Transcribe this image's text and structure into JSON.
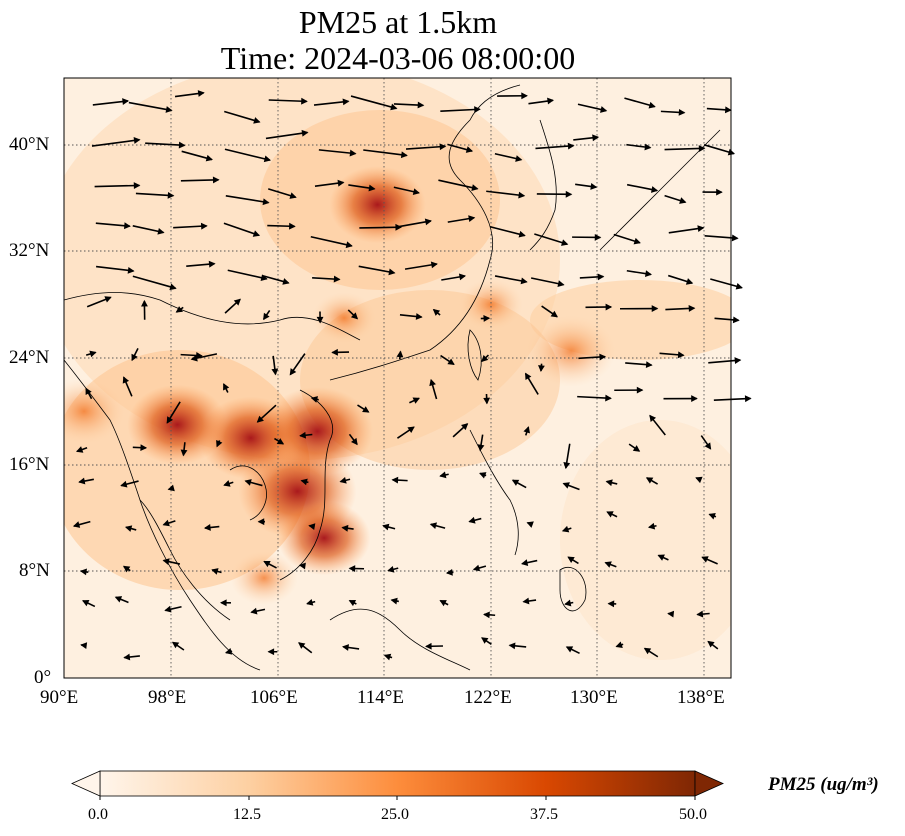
{
  "title": {
    "line1": "PM25 at 1.5km",
    "line2": "Time: 2024-03-06 08:00:00"
  },
  "map": {
    "extent": {
      "lon": [
        90,
        140
      ],
      "lat": [
        0,
        45
      ]
    },
    "x_ticks": [
      "90°E",
      "98°E",
      "106°E",
      "114°E",
      "122°E",
      "130°E",
      "138°E"
    ],
    "y_ticks": [
      "0°",
      "8°N",
      "16°N",
      "24°N",
      "32°N",
      "40°N"
    ],
    "gridlines": true,
    "hotspots": [
      {
        "lon": 107.5,
        "lat": 14.0,
        "value": 50
      },
      {
        "lon": 109.0,
        "lat": 18.5,
        "value": 46
      },
      {
        "lon": 104.0,
        "lat": 18.0,
        "value": 42
      },
      {
        "lon": 98.5,
        "lat": 19.0,
        "value": 40
      },
      {
        "lon": 91.5,
        "lat": 20.0,
        "value": 30
      },
      {
        "lon": 109.5,
        "lat": 10.5,
        "value": 36
      },
      {
        "lon": 113.5,
        "lat": 35.5,
        "value": 38
      },
      {
        "lon": 128.0,
        "lat": 24.5,
        "value": 34
      },
      {
        "lon": 105.0,
        "lat": 7.5,
        "value": 22
      },
      {
        "lon": 111.0,
        "lat": 27.0,
        "value": 20
      },
      {
        "lon": 122.0,
        "lat": 28.0,
        "value": 20
      }
    ],
    "wind_vectors": "black arrows"
  },
  "colorbar": {
    "label": "PM25 (ug/m³)",
    "ticks": [
      "0.0",
      "12.5",
      "25.0",
      "37.5",
      "50.0"
    ],
    "range": [
      0,
      50
    ],
    "colormap": [
      "#fff5eb",
      "#fdd0a2",
      "#fd8d3c",
      "#d94801",
      "#7f2704"
    ]
  }
}
